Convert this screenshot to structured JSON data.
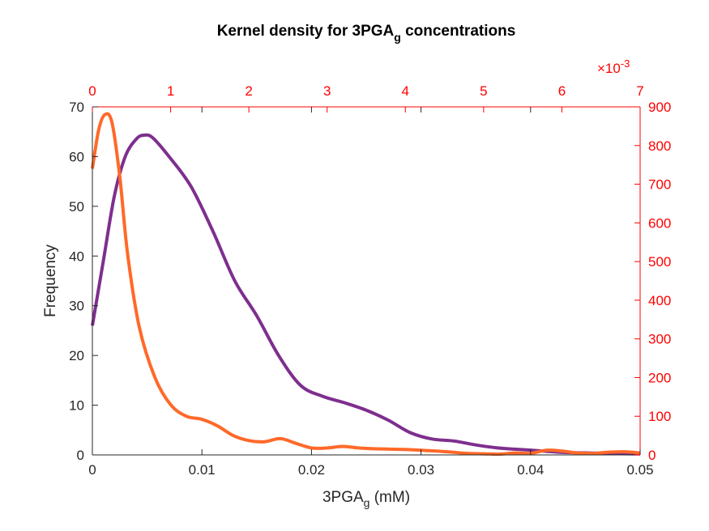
{
  "chart_data": {
    "type": "line",
    "title": {
      "main": "Kernel density for 3PGA",
      "sub": "g",
      "rest": " concentrations"
    },
    "xlabel": {
      "main": "3PGA",
      "sub": "g",
      "rest": " (mM)"
    },
    "ylabel": "Frequency",
    "xlim": [
      0,
      0.05
    ],
    "ylim": [
      0,
      70
    ],
    "x_ticks": [
      "0",
      "0.01",
      "0.02",
      "0.03",
      "0.04",
      "0.05"
    ],
    "y_ticks": [
      "0",
      "10",
      "20",
      "30",
      "40",
      "50",
      "60",
      "70"
    ],
    "top_axis": {
      "xlim": [
        0,
        0.007
      ],
      "ticks": [
        "0",
        "1",
        "2",
        "3",
        "4",
        "5",
        "6",
        "7"
      ],
      "exponent_label": {
        "prefix": "×10",
        "power": "-3"
      },
      "color": "#ff0000"
    },
    "right_axis": {
      "ylim": [
        0,
        900
      ],
      "ticks": [
        "0",
        "100",
        "200",
        "300",
        "400",
        "500",
        "600",
        "700",
        "800",
        "900"
      ],
      "color": "#ff0000"
    },
    "grid": false,
    "legend": "none",
    "series": [
      {
        "color": "#7e2f8e",
        "axes": "bottom-left",
        "x": [
          0,
          0.001,
          0.002,
          0.003,
          0.004,
          0.0047,
          0.0055,
          0.007,
          0.009,
          0.011,
          0.013,
          0.015,
          0.017,
          0.019,
          0.021,
          0.023,
          0.025,
          0.027,
          0.029,
          0.031,
          0.033,
          0.035,
          0.037,
          0.039,
          0.041,
          0.043,
          0.045,
          0.047,
          0.05
        ],
        "y": [
          26,
          39,
          52,
          60,
          63.5,
          64.3,
          63.8,
          60,
          54,
          45,
          35,
          28,
          20,
          14,
          11.8,
          10.5,
          9,
          7,
          4.5,
          3.2,
          2.8,
          2,
          1.4,
          1.1,
          0.8,
          0.5,
          0.4,
          0.3,
          0.2
        ]
      },
      {
        "color": "#ff6929",
        "axes": "top-right",
        "x": [
          0,
          8e-05,
          0.00016,
          0.00025,
          0.00035,
          0.00045,
          0.0006,
          0.0008,
          0.001,
          0.0012,
          0.0014,
          0.0016,
          0.0018,
          0.002,
          0.0022,
          0.0024,
          0.0026,
          0.0028,
          0.003,
          0.0032,
          0.0034,
          0.0036,
          0.0038,
          0.004,
          0.0042,
          0.0044,
          0.0046,
          0.0048,
          0.005,
          0.0052,
          0.0054,
          0.0056,
          0.0058,
          0.006,
          0.0062,
          0.0064,
          0.0066,
          0.0068,
          0.007
        ],
        "y": [
          740,
          840,
          880,
          860,
          720,
          520,
          330,
          200,
          130,
          100,
          92,
          75,
          50,
          37,
          34,
          42,
          30,
          18,
          18,
          22,
          18,
          16,
          15,
          14,
          12,
          10,
          7,
          4,
          3,
          2,
          5,
          4,
          12,
          10,
          5,
          4,
          7,
          8,
          5
        ]
      }
    ]
  }
}
